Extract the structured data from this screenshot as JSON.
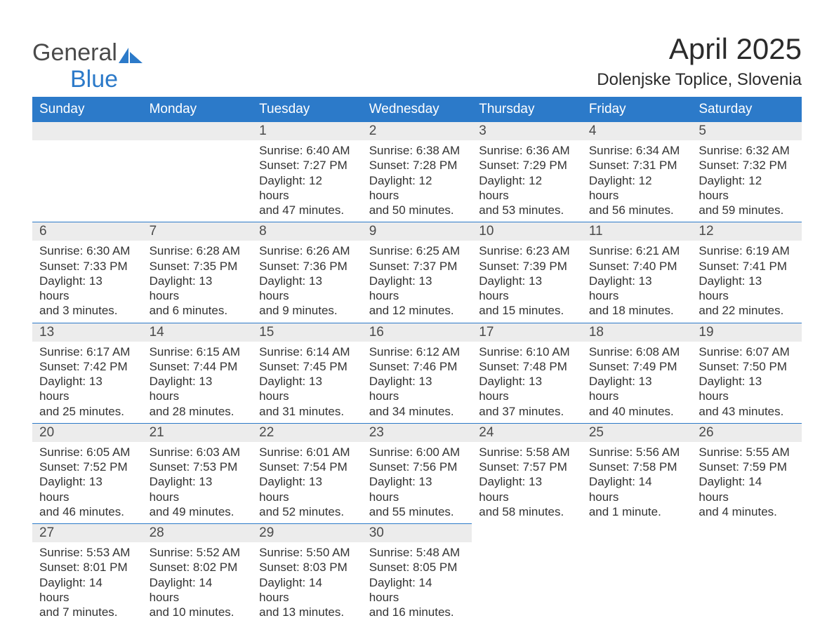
{
  "colors": {
    "header_bg": "#2c7ac9",
    "header_text": "#ffffff",
    "daynum_bg": "#ececec",
    "row_border": "#2c7ac9",
    "body_text": "#333333",
    "logo_general": "#4a4a4a",
    "logo_blue": "#2c7ac9",
    "page_bg": "#ffffff",
    "title_text": "#2b2b2b"
  },
  "typography": {
    "title_fontsize": 42,
    "location_fontsize": 24,
    "weekday_fontsize": 19,
    "daynum_fontsize": 19,
    "body_fontsize": 17,
    "logo_fontsize": 34,
    "font_family": "Arial"
  },
  "logo": {
    "line1": "General",
    "line2": "Blue"
  },
  "title": "April 2025",
  "location": "Dolenjske Toplice, Slovenia",
  "weekdays": [
    "Sunday",
    "Monday",
    "Tuesday",
    "Wednesday",
    "Thursday",
    "Friday",
    "Saturday"
  ],
  "labels": {
    "sunrise": "Sunrise: ",
    "sunset": "Sunset: ",
    "daylight": "Daylight: "
  },
  "weeks": [
    [
      null,
      null,
      {
        "n": "1",
        "sunrise": "6:40 AM",
        "sunset": "7:27 PM",
        "daylight1": "12 hours",
        "daylight2": "and 47 minutes."
      },
      {
        "n": "2",
        "sunrise": "6:38 AM",
        "sunset": "7:28 PM",
        "daylight1": "12 hours",
        "daylight2": "and 50 minutes."
      },
      {
        "n": "3",
        "sunrise": "6:36 AM",
        "sunset": "7:29 PM",
        "daylight1": "12 hours",
        "daylight2": "and 53 minutes."
      },
      {
        "n": "4",
        "sunrise": "6:34 AM",
        "sunset": "7:31 PM",
        "daylight1": "12 hours",
        "daylight2": "and 56 minutes."
      },
      {
        "n": "5",
        "sunrise": "6:32 AM",
        "sunset": "7:32 PM",
        "daylight1": "12 hours",
        "daylight2": "and 59 minutes."
      }
    ],
    [
      {
        "n": "6",
        "sunrise": "6:30 AM",
        "sunset": "7:33 PM",
        "daylight1": "13 hours",
        "daylight2": "and 3 minutes."
      },
      {
        "n": "7",
        "sunrise": "6:28 AM",
        "sunset": "7:35 PM",
        "daylight1": "13 hours",
        "daylight2": "and 6 minutes."
      },
      {
        "n": "8",
        "sunrise": "6:26 AM",
        "sunset": "7:36 PM",
        "daylight1": "13 hours",
        "daylight2": "and 9 minutes."
      },
      {
        "n": "9",
        "sunrise": "6:25 AM",
        "sunset": "7:37 PM",
        "daylight1": "13 hours",
        "daylight2": "and 12 minutes."
      },
      {
        "n": "10",
        "sunrise": "6:23 AM",
        "sunset": "7:39 PM",
        "daylight1": "13 hours",
        "daylight2": "and 15 minutes."
      },
      {
        "n": "11",
        "sunrise": "6:21 AM",
        "sunset": "7:40 PM",
        "daylight1": "13 hours",
        "daylight2": "and 18 minutes."
      },
      {
        "n": "12",
        "sunrise": "6:19 AM",
        "sunset": "7:41 PM",
        "daylight1": "13 hours",
        "daylight2": "and 22 minutes."
      }
    ],
    [
      {
        "n": "13",
        "sunrise": "6:17 AM",
        "sunset": "7:42 PM",
        "daylight1": "13 hours",
        "daylight2": "and 25 minutes."
      },
      {
        "n": "14",
        "sunrise": "6:15 AM",
        "sunset": "7:44 PM",
        "daylight1": "13 hours",
        "daylight2": "and 28 minutes."
      },
      {
        "n": "15",
        "sunrise": "6:14 AM",
        "sunset": "7:45 PM",
        "daylight1": "13 hours",
        "daylight2": "and 31 minutes."
      },
      {
        "n": "16",
        "sunrise": "6:12 AM",
        "sunset": "7:46 PM",
        "daylight1": "13 hours",
        "daylight2": "and 34 minutes."
      },
      {
        "n": "17",
        "sunrise": "6:10 AM",
        "sunset": "7:48 PM",
        "daylight1": "13 hours",
        "daylight2": "and 37 minutes."
      },
      {
        "n": "18",
        "sunrise": "6:08 AM",
        "sunset": "7:49 PM",
        "daylight1": "13 hours",
        "daylight2": "and 40 minutes."
      },
      {
        "n": "19",
        "sunrise": "6:07 AM",
        "sunset": "7:50 PM",
        "daylight1": "13 hours",
        "daylight2": "and 43 minutes."
      }
    ],
    [
      {
        "n": "20",
        "sunrise": "6:05 AM",
        "sunset": "7:52 PM",
        "daylight1": "13 hours",
        "daylight2": "and 46 minutes."
      },
      {
        "n": "21",
        "sunrise": "6:03 AM",
        "sunset": "7:53 PM",
        "daylight1": "13 hours",
        "daylight2": "and 49 minutes."
      },
      {
        "n": "22",
        "sunrise": "6:01 AM",
        "sunset": "7:54 PM",
        "daylight1": "13 hours",
        "daylight2": "and 52 minutes."
      },
      {
        "n": "23",
        "sunrise": "6:00 AM",
        "sunset": "7:56 PM",
        "daylight1": "13 hours",
        "daylight2": "and 55 minutes."
      },
      {
        "n": "24",
        "sunrise": "5:58 AM",
        "sunset": "7:57 PM",
        "daylight1": "13 hours",
        "daylight2": "and 58 minutes."
      },
      {
        "n": "25",
        "sunrise": "5:56 AM",
        "sunset": "7:58 PM",
        "daylight1": "14 hours",
        "daylight2": "and 1 minute."
      },
      {
        "n": "26",
        "sunrise": "5:55 AM",
        "sunset": "7:59 PM",
        "daylight1": "14 hours",
        "daylight2": "and 4 minutes."
      }
    ],
    [
      {
        "n": "27",
        "sunrise": "5:53 AM",
        "sunset": "8:01 PM",
        "daylight1": "14 hours",
        "daylight2": "and 7 minutes."
      },
      {
        "n": "28",
        "sunrise": "5:52 AM",
        "sunset": "8:02 PM",
        "daylight1": "14 hours",
        "daylight2": "and 10 minutes."
      },
      {
        "n": "29",
        "sunrise": "5:50 AM",
        "sunset": "8:03 PM",
        "daylight1": "14 hours",
        "daylight2": "and 13 minutes."
      },
      {
        "n": "30",
        "sunrise": "5:48 AM",
        "sunset": "8:05 PM",
        "daylight1": "14 hours",
        "daylight2": "and 16 minutes."
      },
      null,
      null,
      null
    ]
  ]
}
